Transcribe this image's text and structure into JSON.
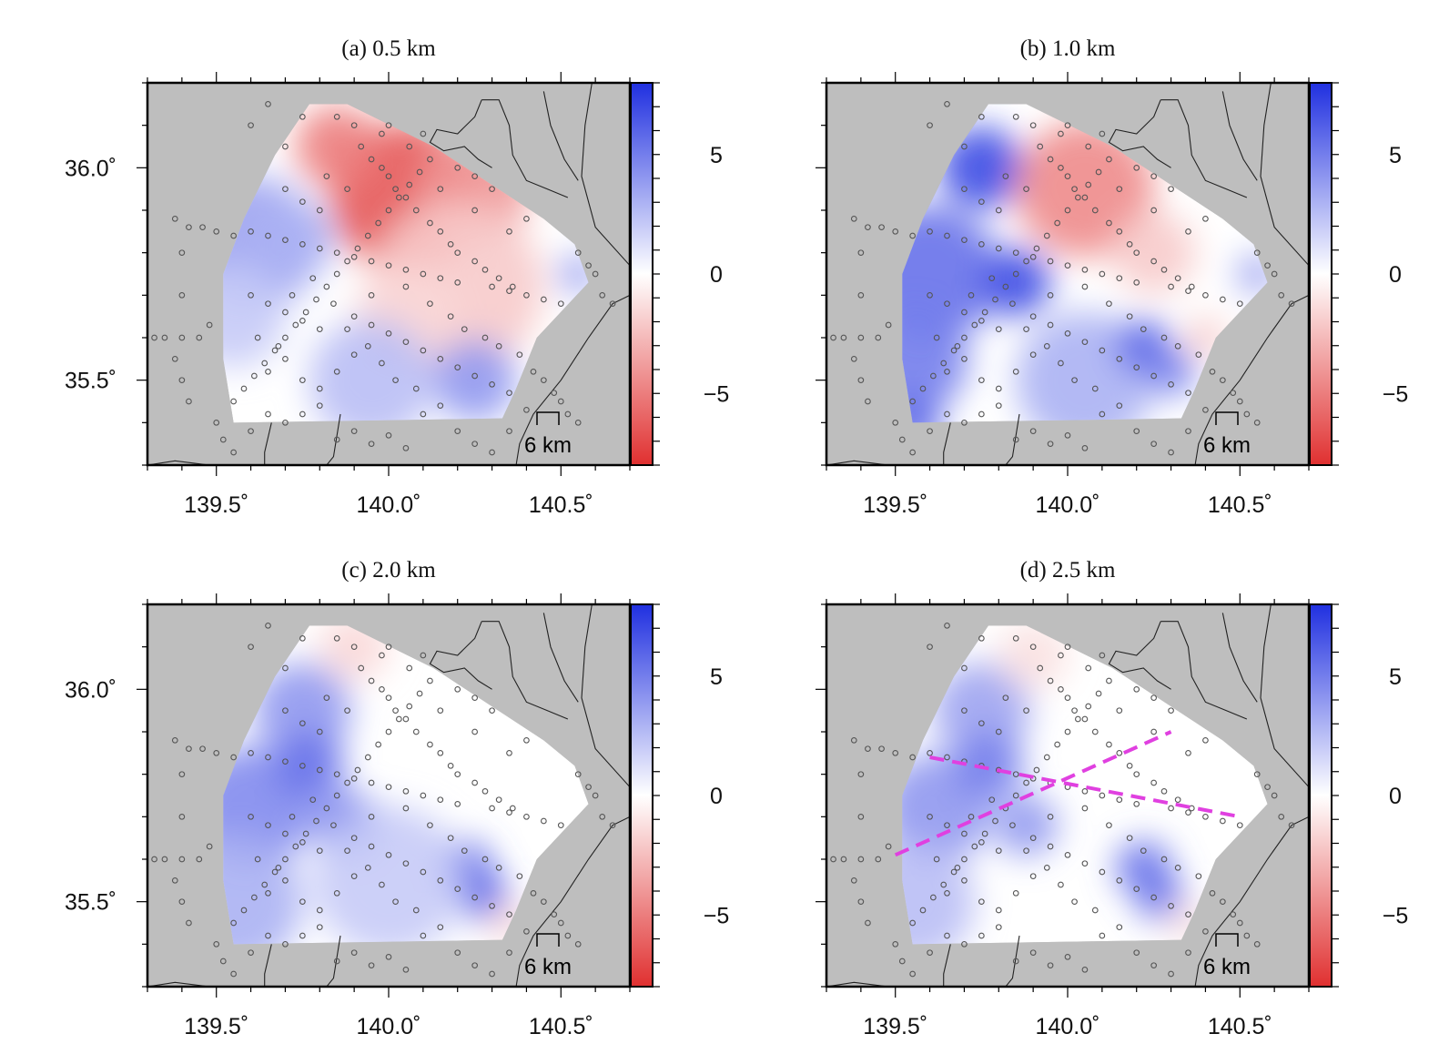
{
  "figure": {
    "panels": [
      {
        "id": "a",
        "title": "(a) 0.5 km",
        "depth_km": 0.5,
        "anomalies": [
          {
            "lon": 140.05,
            "lat": 35.93,
            "value": -6.5,
            "radius_deg": 0.22
          },
          {
            "lon": 139.85,
            "lat": 36.05,
            "value": -5.0,
            "radius_deg": 0.12
          },
          {
            "lon": 140.25,
            "lat": 35.95,
            "value": -4.0,
            "radius_deg": 0.16
          },
          {
            "lon": 140.2,
            "lat": 35.72,
            "value": -2.0,
            "radius_deg": 0.25
          },
          {
            "lon": 140.05,
            "lat": 35.65,
            "value": -1.5,
            "radius_deg": 0.15
          },
          {
            "lon": 139.6,
            "lat": 35.82,
            "value": 3.5,
            "radius_deg": 0.2
          },
          {
            "lon": 139.72,
            "lat": 35.83,
            "value": 3.0,
            "radius_deg": 0.12
          },
          {
            "lon": 139.55,
            "lat": 35.65,
            "value": 2.0,
            "radius_deg": 0.15
          },
          {
            "lon": 140.25,
            "lat": 35.5,
            "value": 4.0,
            "radius_deg": 0.12
          },
          {
            "lon": 139.95,
            "lat": 35.5,
            "value": 2.5,
            "radius_deg": 0.18
          },
          {
            "lon": 140.55,
            "lat": 35.75,
            "value": 3.5,
            "radius_deg": 0.06
          }
        ],
        "profiles": []
      },
      {
        "id": "b",
        "title": "(b) 1.0 km",
        "depth_km": 1.0,
        "anomalies": [
          {
            "lon": 139.75,
            "lat": 36.0,
            "value": 7.0,
            "radius_deg": 0.12
          },
          {
            "lon": 139.6,
            "lat": 35.75,
            "value": 5.5,
            "radius_deg": 0.2
          },
          {
            "lon": 139.85,
            "lat": 35.73,
            "value": 7.0,
            "radius_deg": 0.1
          },
          {
            "lon": 139.55,
            "lat": 35.55,
            "value": 5.0,
            "radius_deg": 0.16
          },
          {
            "lon": 139.55,
            "lat": 35.4,
            "value": 6.0,
            "radius_deg": 0.08
          },
          {
            "lon": 140.05,
            "lat": 35.5,
            "value": 3.0,
            "radius_deg": 0.2
          },
          {
            "lon": 140.22,
            "lat": 35.58,
            "value": 6.0,
            "radius_deg": 0.08
          },
          {
            "lon": 140.3,
            "lat": 35.52,
            "value": 5.0,
            "radius_deg": 0.07
          },
          {
            "lon": 140.05,
            "lat": 35.95,
            "value": -4.5,
            "radius_deg": 0.2
          },
          {
            "lon": 140.25,
            "lat": 35.8,
            "value": -2.0,
            "radius_deg": 0.12
          },
          {
            "lon": 140.4,
            "lat": 35.6,
            "value": -2.0,
            "radius_deg": 0.06
          },
          {
            "lon": 140.55,
            "lat": 35.75,
            "value": 3.5,
            "radius_deg": 0.06
          }
        ],
        "profiles": []
      },
      {
        "id": "c",
        "title": "(c) 2.0 km",
        "depth_km": 2.0,
        "anomalies": [
          {
            "lon": 139.75,
            "lat": 35.95,
            "value": 4.0,
            "radius_deg": 0.14
          },
          {
            "lon": 139.6,
            "lat": 35.72,
            "value": 4.5,
            "radius_deg": 0.18
          },
          {
            "lon": 139.77,
            "lat": 35.82,
            "value": 5.5,
            "radius_deg": 0.1
          },
          {
            "lon": 139.88,
            "lat": 35.68,
            "value": 5.0,
            "radius_deg": 0.1
          },
          {
            "lon": 139.55,
            "lat": 35.5,
            "value": 3.0,
            "radius_deg": 0.2
          },
          {
            "lon": 140.22,
            "lat": 35.58,
            "value": 6.0,
            "radius_deg": 0.08
          },
          {
            "lon": 140.28,
            "lat": 35.51,
            "value": 6.0,
            "radius_deg": 0.07
          },
          {
            "lon": 140.0,
            "lat": 35.55,
            "value": 2.0,
            "radius_deg": 0.22
          },
          {
            "lon": 139.9,
            "lat": 36.1,
            "value": -1.5,
            "radius_deg": 0.1
          },
          {
            "lon": 140.35,
            "lat": 35.45,
            "value": -1.5,
            "radius_deg": 0.06
          }
        ],
        "profiles": []
      },
      {
        "id": "d",
        "title": "(d) 2.5 km",
        "depth_km": 2.5,
        "anomalies": [
          {
            "lon": 139.75,
            "lat": 35.95,
            "value": 3.5,
            "radius_deg": 0.14
          },
          {
            "lon": 139.62,
            "lat": 35.72,
            "value": 4.0,
            "radius_deg": 0.16
          },
          {
            "lon": 139.77,
            "lat": 35.82,
            "value": 5.0,
            "radius_deg": 0.1
          },
          {
            "lon": 139.88,
            "lat": 35.68,
            "value": 4.0,
            "radius_deg": 0.09
          },
          {
            "lon": 139.55,
            "lat": 35.5,
            "value": 2.5,
            "radius_deg": 0.18
          },
          {
            "lon": 140.22,
            "lat": 35.58,
            "value": 5.5,
            "radius_deg": 0.08
          },
          {
            "lon": 140.27,
            "lat": 35.51,
            "value": 5.5,
            "radius_deg": 0.07
          },
          {
            "lon": 139.9,
            "lat": 36.08,
            "value": -1.2,
            "radius_deg": 0.1
          },
          {
            "lon": 140.35,
            "lat": 35.45,
            "value": -1.2,
            "radius_deg": 0.06
          }
        ],
        "profiles": [
          {
            "from": [
              139.5,
              35.61
            ],
            "to": [
              140.3,
              35.9
            ],
            "color": "#e040e0"
          },
          {
            "from": [
              139.6,
              35.84
            ],
            "to": [
              140.5,
              35.7
            ],
            "color": "#e040e0"
          }
        ]
      }
    ],
    "map": {
      "lon_range": [
        139.3,
        140.7
      ],
      "lat_range": [
        35.3,
        36.2
      ],
      "lon_ticks": [
        139.5,
        140.0,
        140.5
      ],
      "lon_tick_labels": [
        "139.5˚",
        "140.0˚",
        "140.5˚"
      ],
      "lat_ticks": [
        35.5,
        36.0
      ],
      "lat_tick_labels": [
        "35.5˚",
        "36.0˚"
      ],
      "land_color": "#bebebe",
      "scale_bar_label": "6 km",
      "data_region": [
        [
          139.58,
          35.88
        ],
        [
          139.67,
          36.03
        ],
        [
          139.77,
          36.15
        ],
        [
          139.88,
          36.15
        ],
        [
          140.13,
          36.05
        ],
        [
          140.45,
          35.88
        ],
        [
          140.54,
          35.82
        ],
        [
          140.58,
          35.73
        ],
        [
          140.43,
          35.6
        ],
        [
          140.37,
          35.48
        ],
        [
          140.33,
          35.41
        ],
        [
          139.55,
          35.4
        ],
        [
          139.52,
          35.55
        ],
        [
          139.52,
          35.75
        ]
      ],
      "stations": [
        [
          139.85,
          36.12
        ],
        [
          139.9,
          36.1
        ],
        [
          139.92,
          36.05
        ],
        [
          139.95,
          36.02
        ],
        [
          139.98,
          36.0
        ],
        [
          140.0,
          35.98
        ],
        [
          140.02,
          35.95
        ],
        [
          140.05,
          35.93
        ],
        [
          140.08,
          35.9
        ],
        [
          140.12,
          35.87
        ],
        [
          140.15,
          35.85
        ],
        [
          140.18,
          35.82
        ],
        [
          140.2,
          35.8
        ],
        [
          140.25,
          35.78
        ],
        [
          140.28,
          35.76
        ],
        [
          140.32,
          35.74
        ],
        [
          140.36,
          35.72
        ],
        [
          140.4,
          35.7
        ],
        [
          140.45,
          35.69
        ],
        [
          140.5,
          35.68
        ],
        [
          139.55,
          35.45
        ],
        [
          139.58,
          35.48
        ],
        [
          139.61,
          35.51
        ],
        [
          139.64,
          35.54
        ],
        [
          139.67,
          35.57
        ],
        [
          139.7,
          35.6
        ],
        [
          139.73,
          35.63
        ],
        [
          139.76,
          35.66
        ],
        [
          139.79,
          35.69
        ],
        [
          139.82,
          35.72
        ],
        [
          139.85,
          35.75
        ],
        [
          139.88,
          35.78
        ],
        [
          139.91,
          35.81
        ],
        [
          139.94,
          35.84
        ],
        [
          139.97,
          35.87
        ],
        [
          140.0,
          35.9
        ],
        [
          140.03,
          35.93
        ],
        [
          140.06,
          35.96
        ],
        [
          140.09,
          35.99
        ],
        [
          140.12,
          36.02
        ],
        [
          139.6,
          35.85
        ],
        [
          139.65,
          35.84
        ],
        [
          139.7,
          35.83
        ],
        [
          139.75,
          35.82
        ],
        [
          139.8,
          35.81
        ],
        [
          139.85,
          35.8
        ],
        [
          139.9,
          35.79
        ],
        [
          139.95,
          35.78
        ],
        [
          140.0,
          35.77
        ],
        [
          140.05,
          35.76
        ],
        [
          140.1,
          35.75
        ],
        [
          140.15,
          35.74
        ],
        [
          140.2,
          35.73
        ],
        [
          140.3,
          35.72
        ],
        [
          140.35,
          35.71
        ],
        [
          139.6,
          35.7
        ],
        [
          139.65,
          35.68
        ],
        [
          139.7,
          35.66
        ],
        [
          139.75,
          35.64
        ],
        [
          139.8,
          35.62
        ],
        [
          139.9,
          35.65
        ],
        [
          139.95,
          35.63
        ],
        [
          140.0,
          35.61
        ],
        [
          140.05,
          35.59
        ],
        [
          140.1,
          35.57
        ],
        [
          140.15,
          35.55
        ],
        [
          140.2,
          35.53
        ],
        [
          140.25,
          35.51
        ],
        [
          140.3,
          35.49
        ],
        [
          140.35,
          35.47
        ],
        [
          139.65,
          35.52
        ],
        [
          139.7,
          35.55
        ],
        [
          139.75,
          35.5
        ],
        [
          139.8,
          35.48
        ],
        [
          139.85,
          35.52
        ],
        [
          139.9,
          35.56
        ],
        [
          139.95,
          35.7
        ],
        [
          140.05,
          35.72
        ],
        [
          140.12,
          35.68
        ],
        [
          140.18,
          35.65
        ],
        [
          140.22,
          35.62
        ],
        [
          140.28,
          35.6
        ],
        [
          140.32,
          35.58
        ],
        [
          140.38,
          35.56
        ],
        [
          140.42,
          35.52
        ],
        [
          140.45,
          35.5
        ],
        [
          140.48,
          35.47
        ],
        [
          140.5,
          35.45
        ],
        [
          140.52,
          35.42
        ],
        [
          140.55,
          35.4
        ],
        [
          139.7,
          35.95
        ],
        [
          139.75,
          35.92
        ],
        [
          139.8,
          35.9
        ],
        [
          139.82,
          35.98
        ],
        [
          139.88,
          35.95
        ],
        [
          140.0,
          36.1
        ],
        [
          140.1,
          36.08
        ],
        [
          140.15,
          35.95
        ],
        [
          140.25,
          35.9
        ],
        [
          140.35,
          35.85
        ],
        [
          140.55,
          35.8
        ],
        [
          140.58,
          35.77
        ],
        [
          140.6,
          35.75
        ],
        [
          140.62,
          35.7
        ],
        [
          140.65,
          35.68
        ],
        [
          139.35,
          35.6
        ],
        [
          139.4,
          35.6
        ],
        [
          139.38,
          35.55
        ],
        [
          139.4,
          35.5
        ],
        [
          139.42,
          35.45
        ],
        [
          139.4,
          35.7
        ],
        [
          139.4,
          35.8
        ],
        [
          139.38,
          35.88
        ],
        [
          139.42,
          35.86
        ],
        [
          139.46,
          35.86
        ],
        [
          139.5,
          35.85
        ],
        [
          139.55,
          35.84
        ],
        [
          139.32,
          35.6
        ],
        [
          139.45,
          35.6
        ],
        [
          139.48,
          35.63
        ],
        [
          139.5,
          35.4
        ],
        [
          139.52,
          35.36
        ],
        [
          139.55,
          35.33
        ],
        [
          139.6,
          35.38
        ],
        [
          139.65,
          35.42
        ],
        [
          139.7,
          35.4
        ],
        [
          139.75,
          35.42
        ],
        [
          139.8,
          35.44
        ],
        [
          139.85,
          35.36
        ],
        [
          139.9,
          35.38
        ],
        [
          139.95,
          35.35
        ],
        [
          140.0,
          35.37
        ],
        [
          140.05,
          35.34
        ],
        [
          140.1,
          35.42
        ],
        [
          140.15,
          35.44
        ],
        [
          140.2,
          35.38
        ],
        [
          140.25,
          35.35
        ],
        [
          140.3,
          35.33
        ],
        [
          140.35,
          35.38
        ],
        [
          140.4,
          35.43
        ],
        [
          139.7,
          36.05
        ],
        [
          139.75,
          36.12
        ],
        [
          139.65,
          36.15
        ],
        [
          139.6,
          36.1
        ],
        [
          139.98,
          36.08
        ],
        [
          140.06,
          36.05
        ],
        [
          140.2,
          36.0
        ],
        [
          140.25,
          35.98
        ],
        [
          140.3,
          35.95
        ],
        [
          140.4,
          35.88
        ],
        [
          139.62,
          35.6
        ],
        [
          139.68,
          35.58
        ],
        [
          139.72,
          35.7
        ],
        [
          139.78,
          35.74
        ],
        [
          139.84,
          35.68
        ],
        [
          139.88,
          35.62
        ],
        [
          139.94,
          35.58
        ],
        [
          139.98,
          35.54
        ],
        [
          140.02,
          35.5
        ],
        [
          140.08,
          35.48
        ]
      ],
      "coastlines": [
        [
          [
            140.35,
            35.2
          ],
          [
            140.38,
            35.35
          ],
          [
            140.42,
            35.42
          ],
          [
            140.5,
            35.5
          ],
          [
            140.58,
            35.6
          ],
          [
            140.65,
            35.68
          ],
          [
            140.75,
            35.72
          ]
        ],
        [
          [
            140.65,
            36.5
          ],
          [
            140.6,
            36.25
          ],
          [
            140.57,
            36.1
          ],
          [
            140.56,
            35.98
          ],
          [
            140.6,
            35.86
          ],
          [
            140.7,
            35.77
          ]
        ],
        [
          [
            139.2,
            35.3
          ],
          [
            139.3,
            35.3
          ],
          [
            139.38,
            35.31
          ],
          [
            139.48,
            35.3
          ]
        ],
        [
          [
            139.64,
            35.28
          ],
          [
            139.64,
            35.33
          ],
          [
            139.66,
            35.4
          ]
        ],
        [
          [
            139.8,
            35.28
          ],
          [
            139.84,
            35.32
          ],
          [
            139.85,
            35.37
          ],
          [
            139.86,
            35.42
          ]
        ],
        [
          [
            140.27,
            36.16
          ],
          [
            140.32,
            36.16
          ],
          [
            140.35,
            36.1
          ],
          [
            140.36,
            36.03
          ],
          [
            140.4,
            35.97
          ],
          [
            140.46,
            35.95
          ],
          [
            140.52,
            35.93
          ]
        ],
        [
          [
            140.27,
            36.16
          ],
          [
            140.25,
            36.12
          ],
          [
            140.2,
            36.08
          ],
          [
            140.14,
            36.09
          ],
          [
            140.12,
            36.06
          ],
          [
            140.16,
            36.04
          ],
          [
            140.22,
            36.05
          ],
          [
            140.26,
            36.02
          ],
          [
            140.3,
            36.0
          ]
        ],
        [
          [
            140.45,
            36.18
          ],
          [
            140.47,
            36.1
          ],
          [
            140.51,
            36.02
          ],
          [
            140.55,
            35.97
          ]
        ]
      ]
    },
    "colorbar": {
      "vmin": -8,
      "vmax": 8,
      "ticks": [
        5,
        0,
        -5
      ],
      "tick_labels": [
        "5",
        "0",
        "−5"
      ],
      "low_color": "#e03030",
      "mid_color": "#ffffff",
      "high_color": "#2030e0"
    }
  }
}
